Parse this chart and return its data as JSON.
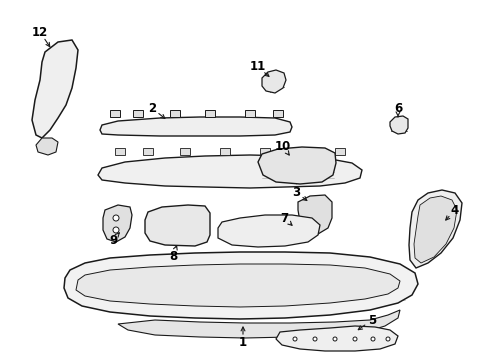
{
  "background_color": "#ffffff",
  "line_color": "#1a1a1a",
  "label_color": "#000000",
  "figsize": [
    4.9,
    3.6
  ],
  "dpi": 100,
  "labels": {
    "1": [
      243,
      343,
      243,
      328
    ],
    "2": [
      152,
      107,
      168,
      122
    ],
    "3": [
      296,
      192,
      296,
      208
    ],
    "4": [
      453,
      208,
      440,
      222
    ],
    "5": [
      370,
      318,
      355,
      310
    ],
    "6": [
      398,
      108,
      398,
      122
    ],
    "7": [
      285,
      220,
      298,
      228
    ],
    "8": [
      172,
      255,
      175,
      240
    ],
    "9": [
      113,
      238,
      130,
      228
    ],
    "10": [
      285,
      148,
      290,
      163
    ],
    "11": [
      258,
      68,
      262,
      82
    ],
    "12": [
      40,
      32,
      52,
      52
    ]
  }
}
